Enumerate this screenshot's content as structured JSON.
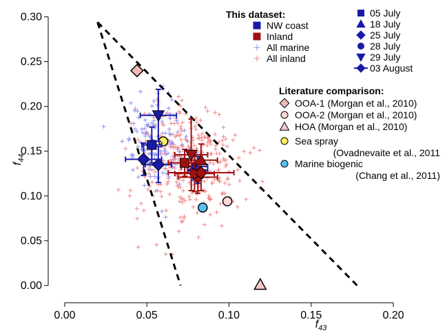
{
  "chart_data": {
    "type": "scatter",
    "xlabel": "f",
    "xlabel_sub": "43",
    "ylabel": "f",
    "ylabel_sub": "44",
    "xlim": [
      -0.005,
      0.205
    ],
    "ylim": [
      -0.01,
      0.305
    ],
    "xticks": [
      0.0,
      0.05,
      0.1,
      0.15,
      0.2
    ],
    "xtick_labels": [
      "0.00",
      "0.05",
      "0.10",
      "0.15",
      "0.20"
    ],
    "yticks": [
      0.0,
      0.05,
      0.1,
      0.15,
      0.2,
      0.25,
      0.3
    ],
    "ytick_labels": [
      "0.00",
      "0.05",
      "0.10",
      "0.15",
      "0.20",
      "0.25",
      "0.30"
    ],
    "grid": false,
    "triangle": [
      [
        0.02,
        0.294
      ],
      [
        0.0705,
        0.0
      ],
      [
        0.178,
        0.0
      ]
    ],
    "legend_this": {
      "title": "This dataset:",
      "items": [
        {
          "label": "NW coast",
          "symbol": "square",
          "color": "#1a1aa8"
        },
        {
          "label": "Inland",
          "symbol": "square",
          "color": "#a01010"
        },
        {
          "label": "All marine",
          "symbol": "plus",
          "color": "#8f8ff0"
        },
        {
          "label": "All inland",
          "symbol": "plus",
          "color": "#f08a8a"
        }
      ]
    },
    "legend_dates": [
      {
        "label": "05 July",
        "symbol": "square"
      },
      {
        "label": "18 July",
        "symbol": "triangle-up"
      },
      {
        "label": "25 July",
        "symbol": "diamond"
      },
      {
        "label": "28 July",
        "symbol": "circle"
      },
      {
        "label": "29 July",
        "symbol": "triangle-down"
      },
      {
        "label": "03 August",
        "symbol": "diamond-bar"
      }
    ],
    "legend_lit": {
      "title": "Literature comparison:",
      "items": [
        {
          "label": "OOA-1 (Morgan et al., 2010)",
          "symbol": "diamond",
          "color": "#f4b8b8"
        },
        {
          "label": "OOA-2 (Morgan et al., 2010)",
          "symbol": "circle",
          "color": "#fad8d8"
        },
        {
          "label": "HOA (Morgan et al., 2010)",
          "symbol": "triangle-up",
          "color": "#f8c8c8"
        },
        {
          "label": "Sea spray",
          "label2": "(Ovadnevaite et al., 2011",
          "symbol": "circle",
          "color": "#f8f060"
        },
        {
          "label": "Marine biogenic",
          "label2": "(Chang et al., 2011)",
          "symbol": "circle",
          "color": "#58c0f0"
        }
      ]
    },
    "literature_points": [
      {
        "name": "OOA-1",
        "symbol": "diamond",
        "color": "#f4b8b8",
        "x": 0.044,
        "y": 0.24
      },
      {
        "name": "OOA-2",
        "symbol": "circle",
        "color": "#fad8d8",
        "x": 0.099,
        "y": 0.094
      },
      {
        "name": "HOA",
        "symbol": "triangle-up",
        "color": "#f8c8c8",
        "x": 0.119,
        "y": 0.001
      },
      {
        "name": "Sea spray",
        "symbol": "circle",
        "color": "#f8f060",
        "x": 0.06,
        "y": 0.161
      },
      {
        "name": "Marine biogenic",
        "symbol": "circle",
        "color": "#58c0f0",
        "x": 0.084,
        "y": 0.087
      }
    ],
    "series": [
      {
        "name": "NW coast",
        "color": "#1a1aa8",
        "points": [
          {
            "date": "05 July",
            "symbol": "square",
            "x": 0.053,
            "y": 0.157,
            "xerr": 0.006,
            "yerr": 0.02
          },
          {
            "date": "18 July",
            "symbol": "triangle-up",
            "x": 0.079,
            "y": 0.133,
            "xerr": 0.008,
            "yerr": 0.015
          },
          {
            "date": "25 July",
            "symbol": "diamond",
            "x": 0.057,
            "y": 0.135,
            "xerr": 0.008,
            "yerr": 0.02
          },
          {
            "date": "28 July",
            "symbol": "circle",
            "x": 0.081,
            "y": 0.129,
            "xerr": 0.006,
            "yerr": 0.015
          },
          {
            "date": "29 July",
            "symbol": "triangle-down",
            "x": 0.057,
            "y": 0.19,
            "xerr": 0.011,
            "yerr": 0.029
          },
          {
            "date": "03 August",
            "symbol": "diamond-bar",
            "x": 0.048,
            "y": 0.141,
            "xerr": 0.011,
            "yerr": 0.018
          }
        ]
      },
      {
        "name": "Inland",
        "color": "#a01010",
        "points": [
          {
            "date": "05 July",
            "symbol": "square",
            "x": 0.073,
            "y": 0.137,
            "xerr": 0.01,
            "yerr": 0.015
          },
          {
            "date": "18 July",
            "symbol": "triangle-up",
            "x": 0.083,
            "y": 0.14,
            "xerr": 0.01,
            "yerr": 0.018
          },
          {
            "date": "25 July",
            "symbol": "diamond",
            "x": 0.081,
            "y": 0.121,
            "xerr": 0.012,
            "yerr": 0.018
          },
          {
            "date": "28 July",
            "symbol": "circle",
            "x": 0.079,
            "y": 0.125,
            "xerr": 0.012,
            "yerr": 0.02
          },
          {
            "date": "29 July",
            "symbol": "triangle-down",
            "x": 0.077,
            "y": 0.146,
            "xerr": 0.01,
            "yerr": 0.04
          },
          {
            "date": "03 August",
            "symbol": "diamond-bar",
            "x": 0.083,
            "y": 0.126,
            "xerr": 0.02,
            "yerr": 0.02
          }
        ]
      }
    ],
    "cloud_points": [
      {
        "name": "All marine",
        "color": "#8f8ff0",
        "center": [
          0.055,
          0.16
        ],
        "spread": [
          0.009,
          0.025
        ],
        "count": 130
      },
      {
        "name": "All inland",
        "color": "#f08a8a",
        "center": [
          0.075,
          0.137
        ],
        "spread": [
          0.016,
          0.033
        ],
        "count": 320
      }
    ]
  }
}
